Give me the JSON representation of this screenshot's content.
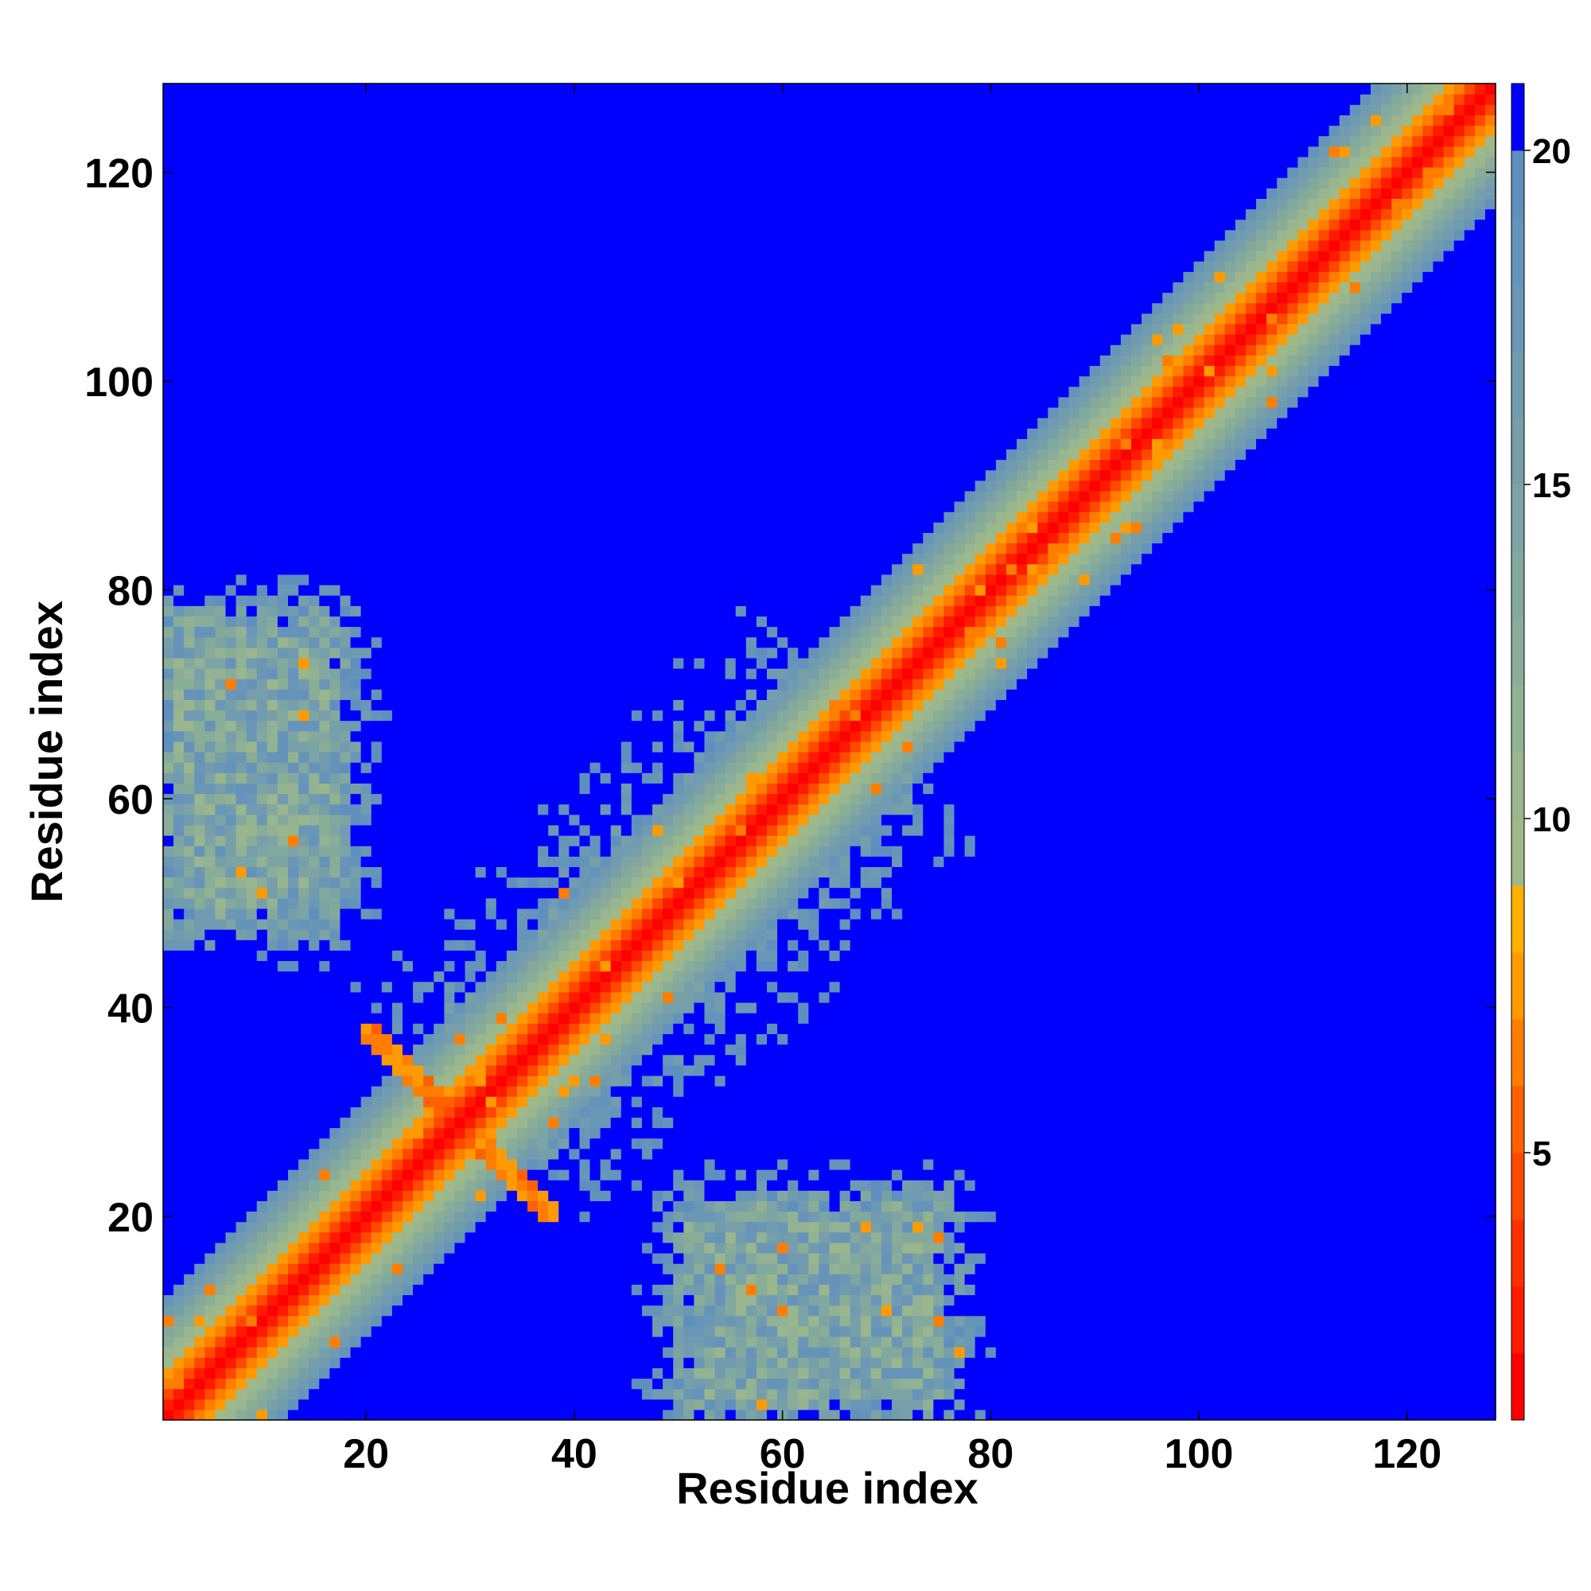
{
  "chart_data": {
    "type": "heatmap",
    "title": "",
    "xlabel": "Residue index",
    "ylabel": "Residue index",
    "n_residues": 128,
    "xlim": [
      1,
      128
    ],
    "ylim": [
      1,
      128
    ],
    "x_ticks": [
      20,
      40,
      60,
      80,
      100,
      120
    ],
    "y_ticks": [
      20,
      40,
      60,
      80,
      100,
      120
    ],
    "grid": false,
    "colorbar": {
      "position": "right",
      "ticks": [
        5,
        10,
        15,
        20
      ],
      "range": [
        1,
        21
      ],
      "levels": [
        {
          "min": 1,
          "max": 2,
          "color": "#ff0000"
        },
        {
          "min": 2,
          "max": 3,
          "color": "#ff1a00"
        },
        {
          "min": 3,
          "max": 4,
          "color": "#ff3000"
        },
        {
          "min": 4,
          "max": 5,
          "color": "#ff4800"
        },
        {
          "min": 5,
          "max": 6,
          "color": "#ff6000"
        },
        {
          "min": 6,
          "max": 7,
          "color": "#ff7e00"
        },
        {
          "min": 7,
          "max": 8,
          "color": "#ff9a00"
        },
        {
          "min": 8,
          "max": 9,
          "color": "#ffb000"
        },
        {
          "min": 9,
          "max": 10,
          "color": "#9fb98a"
        },
        {
          "min": 10,
          "max": 11,
          "color": "#99b68e"
        },
        {
          "min": 11,
          "max": 12,
          "color": "#92b293"
        },
        {
          "min": 12,
          "max": 13,
          "color": "#8aad98"
        },
        {
          "min": 13,
          "max": 14,
          "color": "#83a99e"
        },
        {
          "min": 14,
          "max": 15,
          "color": "#7ca4a4"
        },
        {
          "min": 15,
          "max": 16,
          "color": "#769faa"
        },
        {
          "min": 16,
          "max": 17,
          "color": "#709bb0"
        },
        {
          "min": 17,
          "max": 18,
          "color": "#6a97b5"
        },
        {
          "min": 18,
          "max": 19,
          "color": "#6593ba"
        },
        {
          "min": 19,
          "max": 20,
          "color": "#5f8fbf"
        },
        {
          "min": 20,
          "max": 21,
          "color": "#0000ff"
        }
      ]
    },
    "contact_regions": [
      {
        "name": "diagonal band",
        "from": [
          1,
          1
        ],
        "to": [
          128,
          128
        ],
        "value_range": [
          1,
          20
        ]
      },
      {
        "name": "anti-parallel contact strand",
        "from": [
          21,
          37
        ],
        "to": [
          37,
          21
        ],
        "value_range": [
          5,
          8
        ]
      },
      {
        "name": "upper-left contact cluster",
        "x_range": [
          1,
          30
        ],
        "y_range": [
          40,
          82
        ],
        "value_range": [
          5,
          20
        ]
      },
      {
        "name": "lower-right contact cluster",
        "x_range": [
          42,
          82
        ],
        "y_range": [
          1,
          30
        ],
        "value_range": [
          5,
          20
        ]
      }
    ]
  }
}
